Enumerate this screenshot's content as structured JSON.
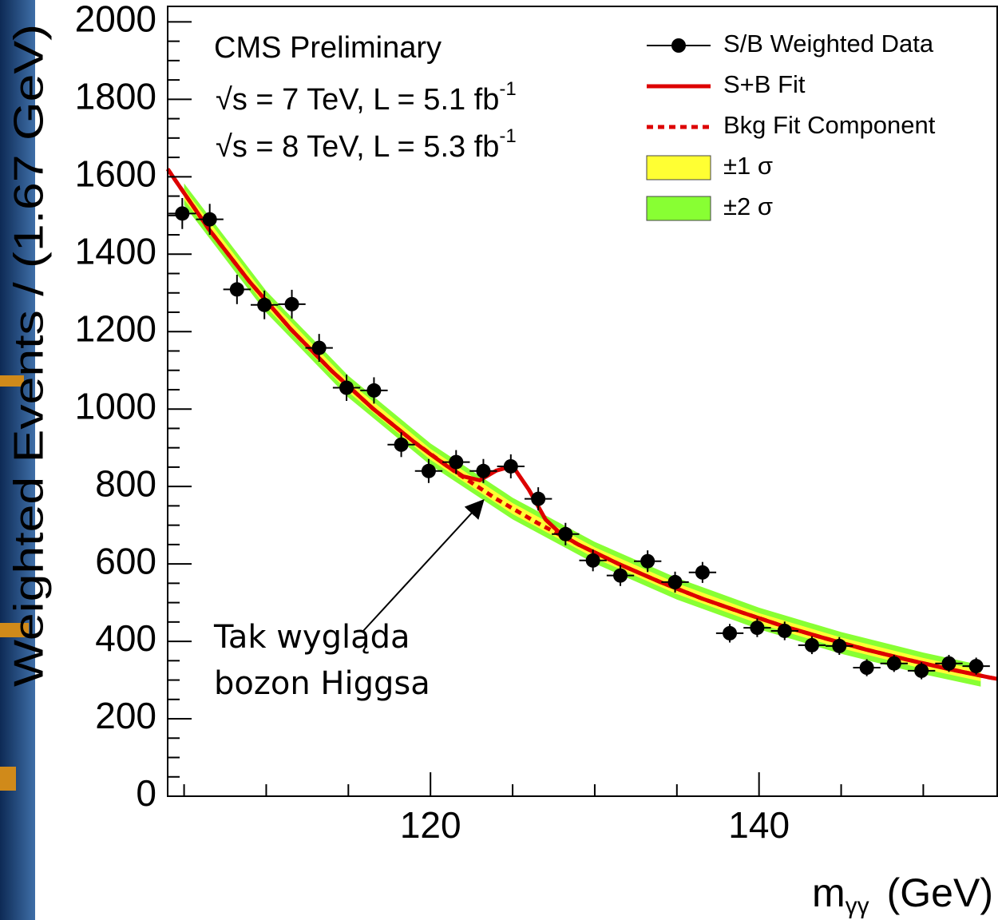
{
  "chart_data": {
    "type": "scatter",
    "title": "CMS Preliminary",
    "info_lines": [
      {
        "text": "√s = 7 TeV, L = 5.1 fb",
        "superscript": "-1"
      },
      {
        "text": "√s = 8 TeV, L = 5.3 fb",
        "superscript": "-1"
      }
    ],
    "x_label": {
      "text": "m",
      "subscript": "γγ",
      "unit": "(GeV)"
    },
    "y_label": "Weighted Events / (1.67 GeV)",
    "annotation": {
      "lines": [
        "Tak wygląda",
        "bozon Higgsa"
      ],
      "x": 123.3,
      "y": 770
    },
    "xlim": [
      104,
      154.5
    ],
    "ylim": [
      0,
      2040
    ],
    "xticks": [
      120,
      140
    ],
    "xminorticks": [
      105,
      110,
      115,
      125,
      130,
      135,
      145,
      150
    ],
    "yticks": [
      0,
      200,
      400,
      600,
      800,
      1000,
      1200,
      1400,
      1600,
      1800,
      2000
    ],
    "yminorticks": [
      50,
      100,
      150,
      250,
      300,
      350,
      450,
      500,
      550,
      650,
      700,
      750,
      850,
      900,
      950,
      1050,
      1100,
      1150,
      1250,
      1300,
      1350,
      1450,
      1500,
      1550,
      1650,
      1700,
      1750,
      1850,
      1900,
      1950
    ],
    "legend": "top-right",
    "series": [
      {
        "name": "S/B Weighted Data",
        "type": "errorbar",
        "color": "#000000",
        "x": [
          104.89,
          106.56,
          108.22,
          109.89,
          111.56,
          113.22,
          114.89,
          116.56,
          118.22,
          119.89,
          121.56,
          123.22,
          124.89,
          126.56,
          128.22,
          129.89,
          131.56,
          133.22,
          134.89,
          136.56,
          138.22,
          139.89,
          141.56,
          143.22,
          144.89,
          146.56,
          148.22,
          149.89,
          151.56,
          153.22
        ],
        "values": [
          1505,
          1490,
          1309,
          1269,
          1271,
          1158,
          1055,
          1048,
          908,
          840,
          863,
          840,
          852,
          768,
          677,
          609,
          570,
          607,
          553,
          578,
          421,
          435,
          427,
          390,
          388,
          332,
          343,
          324,
          343,
          336
        ],
        "yerr": [
          40,
          40,
          38,
          37,
          37,
          36,
          34,
          34,
          32,
          31,
          31,
          31,
          31,
          30,
          29,
          28,
          27,
          28,
          27,
          27,
          24,
          24,
          24,
          23,
          23,
          22,
          22,
          22,
          22,
          22
        ],
        "xerr": 0.835
      },
      {
        "name": "S+B Fit",
        "type": "line",
        "color": "#dd0000",
        "x": [
          104,
          106.5,
          109,
          111.5,
          114,
          116.5,
          119,
          120,
          121,
          122,
          123,
          124,
          125,
          126,
          127,
          128,
          129,
          131.5,
          134,
          136.5,
          139,
          141.5,
          144,
          146.5,
          149,
          151.5,
          154,
          154.5
        ],
        "values": [
          1620,
          1465,
          1328,
          1206,
          1098,
          1001,
          915,
          883,
          853,
          826,
          816,
          841,
          853,
          791,
          715,
          675,
          650,
          599,
          553,
          511,
          474,
          439,
          408,
          379,
          353,
          329,
          307,
          303
        ]
      },
      {
        "name": "Bkg Fit Component",
        "type": "line",
        "dashed": true,
        "color": "#dd0000",
        "x": [
          104,
          106.5,
          109,
          111.5,
          114,
          116.5,
          119,
          121.5,
          124,
          126.5,
          129,
          131.5,
          134,
          136.5,
          139,
          141.5,
          144,
          146.5,
          149,
          151.5,
          154,
          154.5
        ],
        "values": [
          1620,
          1465,
          1328,
          1206,
          1098,
          1001,
          915,
          838,
          768,
          706,
          650,
          599,
          553,
          511,
          474,
          439,
          408,
          379,
          353,
          329,
          307,
          303
        ]
      },
      {
        "name": "±1 σ",
        "type": "band",
        "color": "#ffff33",
        "x": [
          105,
          110,
          115,
          120,
          125,
          130,
          135,
          140,
          145,
          150,
          153.5
        ],
        "lower": [
          1541,
          1263,
          1044,
          869,
          729,
          615,
          522,
          445,
          382,
          329,
          297
        ],
        "upper": [
          1569,
          1291,
          1072,
          897,
          757,
          643,
          550,
          473,
          410,
          357,
          325
        ]
      },
      {
        "name": "±2 σ",
        "type": "band",
        "color": "#88ff33",
        "x": [
          105,
          110,
          115,
          120,
          125,
          130,
          135,
          140,
          145,
          150,
          153.5
        ],
        "lower": [
          1527,
          1249,
          1030,
          855,
          715,
          601,
          508,
          431,
          368,
          315,
          283
        ],
        "upper": [
          1583,
          1305,
          1086,
          911,
          771,
          657,
          564,
          487,
          424,
          371,
          339
        ]
      }
    ]
  }
}
